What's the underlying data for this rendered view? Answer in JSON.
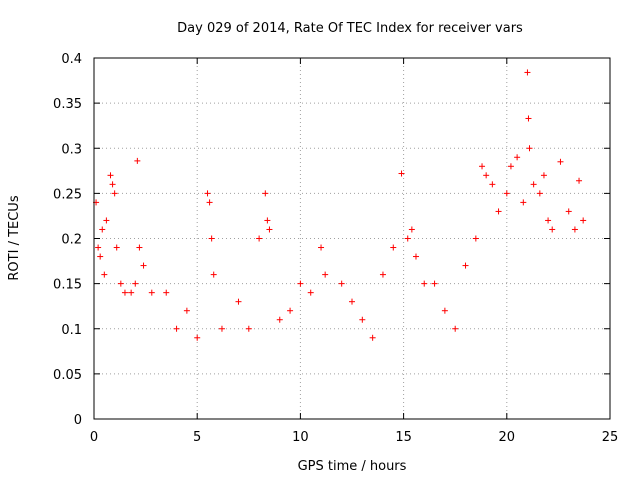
{
  "chart_data": {
    "type": "scatter",
    "title": "Day 029 of 2014, Rate Of TEC Index for receiver vars",
    "xlabel": "GPS time / hours",
    "ylabel": "ROTI / TECUs",
    "xlim": [
      0,
      25
    ],
    "ylim": [
      0,
      0.4
    ],
    "xticks": [
      0,
      5,
      10,
      15,
      20,
      25
    ],
    "xtick_labels": [
      "0",
      "5",
      "10",
      "15",
      "20",
      "25"
    ],
    "yticks": [
      0,
      0.05,
      0.1,
      0.15,
      0.2,
      0.25,
      0.3,
      0.35,
      0.4
    ],
    "ytick_labels": [
      "0",
      "0.05",
      "0.1",
      "0.15",
      "0.2",
      "0.25",
      "0.3",
      "0.35",
      "0.4"
    ],
    "grid": true,
    "marker": "+",
    "color": "#ff0000",
    "series": [
      {
        "name": "ROTI",
        "points": [
          [
            0.1,
            0.24
          ],
          [
            0.2,
            0.19
          ],
          [
            0.3,
            0.18
          ],
          [
            0.4,
            0.21
          ],
          [
            0.5,
            0.16
          ],
          [
            0.6,
            0.22
          ],
          [
            0.8,
            0.27
          ],
          [
            0.9,
            0.26
          ],
          [
            1.0,
            0.25
          ],
          [
            1.1,
            0.19
          ],
          [
            1.3,
            0.15
          ],
          [
            1.5,
            0.14
          ],
          [
            1.8,
            0.14
          ],
          [
            2.0,
            0.15
          ],
          [
            2.1,
            0.286
          ],
          [
            2.2,
            0.19
          ],
          [
            2.4,
            0.17
          ],
          [
            2.8,
            0.14
          ],
          [
            3.5,
            0.14
          ],
          [
            4.0,
            0.1
          ],
          [
            4.5,
            0.12
          ],
          [
            5.0,
            0.09
          ],
          [
            5.5,
            0.25
          ],
          [
            5.6,
            0.24
          ],
          [
            5.7,
            0.2
          ],
          [
            5.8,
            0.16
          ],
          [
            6.2,
            0.1
          ],
          [
            7.0,
            0.13
          ],
          [
            7.5,
            0.1
          ],
          [
            8.0,
            0.2
          ],
          [
            8.3,
            0.25
          ],
          [
            8.4,
            0.22
          ],
          [
            8.5,
            0.21
          ],
          [
            9.0,
            0.11
          ],
          [
            9.5,
            0.12
          ],
          [
            10.0,
            0.15
          ],
          [
            10.5,
            0.14
          ],
          [
            11.0,
            0.19
          ],
          [
            11.2,
            0.16
          ],
          [
            12.0,
            0.15
          ],
          [
            12.5,
            0.13
          ],
          [
            13.0,
            0.11
          ],
          [
            13.5,
            0.09
          ],
          [
            14.0,
            0.16
          ],
          [
            14.5,
            0.19
          ],
          [
            14.9,
            0.272
          ],
          [
            15.2,
            0.2
          ],
          [
            15.4,
            0.21
          ],
          [
            15.6,
            0.18
          ],
          [
            16.0,
            0.15
          ],
          [
            16.5,
            0.15
          ],
          [
            17.0,
            0.12
          ],
          [
            17.5,
            0.1
          ],
          [
            18.0,
            0.17
          ],
          [
            18.5,
            0.2
          ],
          [
            18.8,
            0.28
          ],
          [
            19.0,
            0.27
          ],
          [
            19.3,
            0.26
          ],
          [
            19.6,
            0.23
          ],
          [
            20.0,
            0.25
          ],
          [
            20.2,
            0.28
          ],
          [
            20.5,
            0.29
          ],
          [
            20.8,
            0.24
          ],
          [
            21.0,
            0.384
          ],
          [
            21.05,
            0.333
          ],
          [
            21.1,
            0.3
          ],
          [
            21.3,
            0.26
          ],
          [
            21.6,
            0.25
          ],
          [
            21.8,
            0.27
          ],
          [
            22.0,
            0.22
          ],
          [
            22.2,
            0.21
          ],
          [
            22.6,
            0.285
          ],
          [
            23.0,
            0.23
          ],
          [
            23.3,
            0.21
          ],
          [
            23.5,
            0.264
          ],
          [
            23.7,
            0.22
          ]
        ]
      }
    ]
  }
}
